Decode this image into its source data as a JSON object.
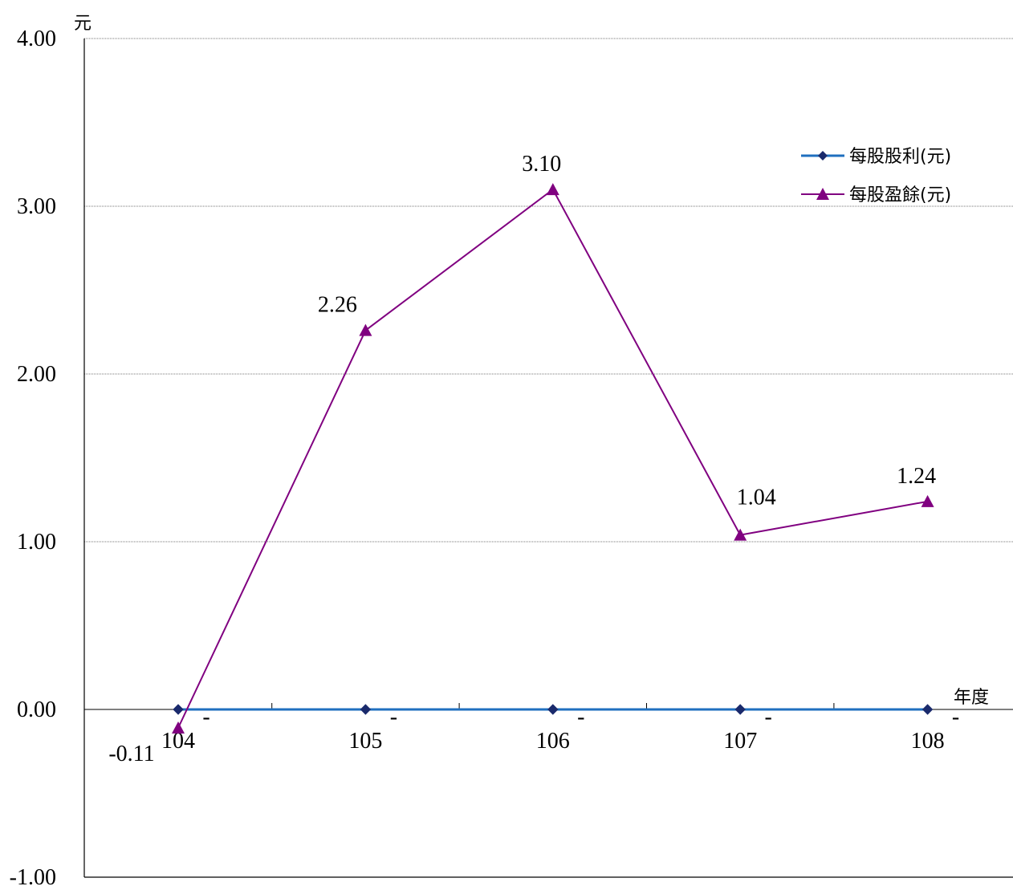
{
  "chart_data": {
    "type": "line",
    "title": "",
    "ylabel": "元",
    "xlabel": "年度",
    "ylim": [
      -1.0,
      4.0
    ],
    "yticks": [
      "4.00",
      "3.00",
      "2.00",
      "1.00",
      "0.00",
      "-1.00"
    ],
    "yticks_values": [
      4,
      3,
      2,
      1,
      0,
      -1
    ],
    "categories": [
      "104",
      "105",
      "106",
      "107",
      "108"
    ],
    "grid": true,
    "legend_position": "top-right",
    "series": [
      {
        "name": "每股股利(元)",
        "values": [
          0,
          0,
          0,
          0,
          0
        ],
        "labels": [
          "-",
          "-",
          "-",
          "-",
          "-"
        ],
        "color": "#1f6fbf",
        "marker": "diamond"
      },
      {
        "name": "每股盈餘(元)",
        "values": [
          -0.11,
          2.26,
          3.1,
          1.04,
          1.24
        ],
        "labels": [
          "-0.11",
          "2.26",
          "3.10",
          "1.04",
          "1.24"
        ],
        "color": "#800080",
        "marker": "triangle"
      }
    ]
  }
}
